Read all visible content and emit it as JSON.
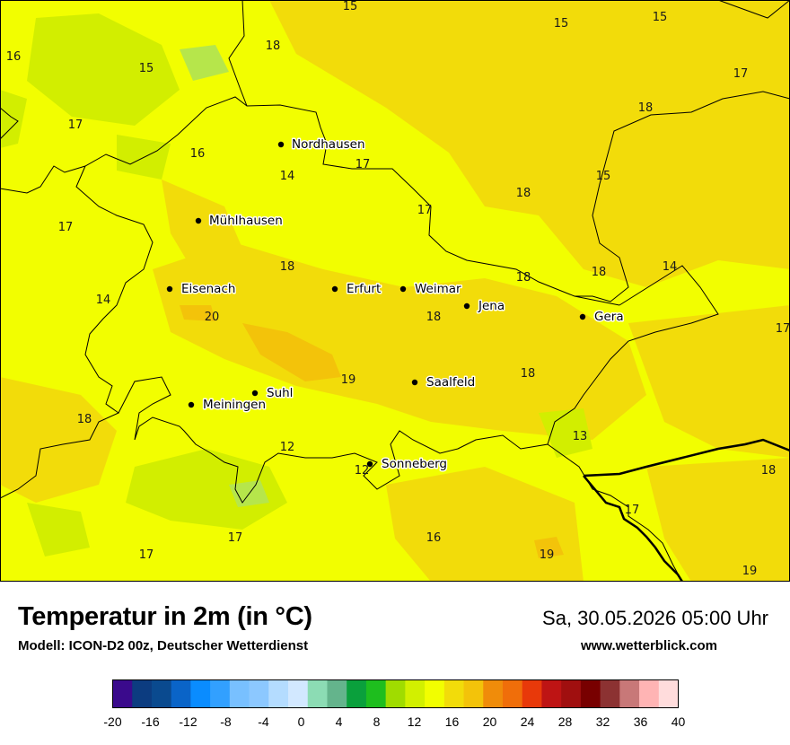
{
  "map": {
    "colors": {
      "base": "#f2fe00",
      "warm": "#f2dc0a",
      "warmer": "#f3c30a",
      "cool": "#d2ee00",
      "coolest": "#b6e64b",
      "border": "#000000"
    },
    "cities": [
      {
        "name": "Nordhausen"
      },
      {
        "name": "Mühlhausen"
      },
      {
        "name": "Eisenach"
      },
      {
        "name": "Erfurt"
      },
      {
        "name": "Weimar"
      },
      {
        "name": "Jena"
      },
      {
        "name": "Gera"
      },
      {
        "name": "Saalfeld"
      },
      {
        "name": "Suhl"
      },
      {
        "name": "Meiningen"
      },
      {
        "name": "Sonneberg"
      }
    ],
    "temperature_labels": [
      "15",
      "15",
      "15",
      "16",
      "15",
      "18",
      "17",
      "17",
      "18",
      "16",
      "17",
      "14",
      "18",
      "15",
      "17",
      "17",
      "18",
      "18",
      "14",
      "14",
      "18",
      "18",
      "20",
      "18",
      "19",
      "17",
      "18",
      "13",
      "18",
      "12",
      "12",
      "19",
      "17",
      "17",
      "16",
      "17",
      "19",
      "18"
    ]
  },
  "footer": {
    "title": "Temperatur in 2m (in °C)",
    "model": "Modell: ICON-D2 00z, Deutscher Wetterdienst",
    "datetime": "Sa, 30.05.2026 05:00 Uhr",
    "website": "www.wetterblick.com"
  },
  "legend": {
    "colors": [
      "#3a0a8c",
      "#0c3c80",
      "#0a4a8f",
      "#0a64c8",
      "#0a8cff",
      "#32a0ff",
      "#78c0ff",
      "#8cc8ff",
      "#b4dcff",
      "#d2e8ff",
      "#8cdcb4",
      "#64b48c",
      "#0aa03c",
      "#1ebe1e",
      "#a0dc00",
      "#d2f000",
      "#f2fe00",
      "#f2dc0a",
      "#f3c30a",
      "#f08c0a",
      "#f06e0a",
      "#e8390a",
      "#be1414",
      "#a00f0f",
      "#780000",
      "#8c3232",
      "#c87878",
      "#ffb4b4",
      "#ffdcdc"
    ],
    "ticks": [
      "-20",
      "-16",
      "-12",
      "-8",
      "-4",
      "0",
      "4",
      "8",
      "12",
      "16",
      "20",
      "24",
      "28",
      "32",
      "36",
      "40"
    ]
  }
}
